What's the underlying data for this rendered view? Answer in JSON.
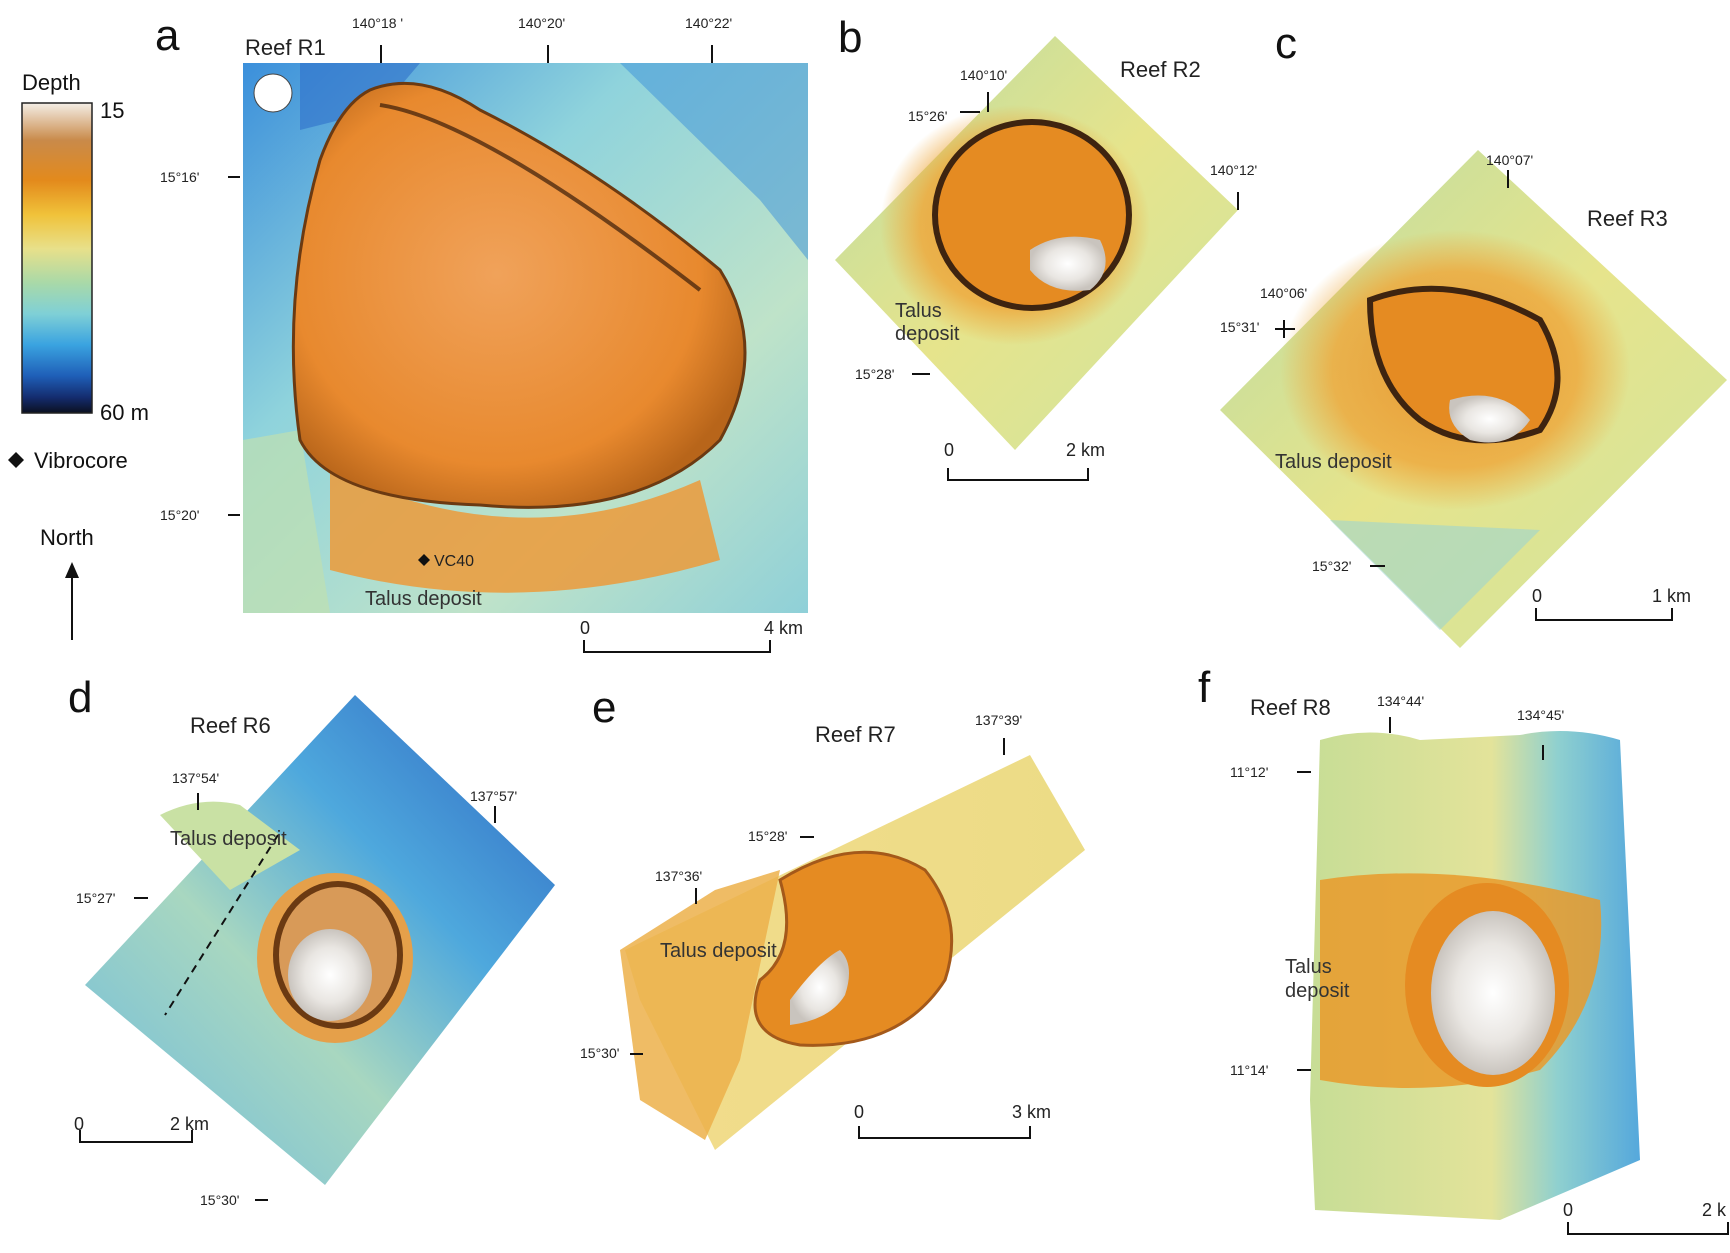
{
  "legend": {
    "title": "Depth",
    "top_value": "15",
    "bottom_value": "60 m",
    "gradient_colors": [
      "#f4eee6",
      "#c98a4a",
      "#e38a1c",
      "#f0c23a",
      "#e8e08a",
      "#a9d9a8",
      "#7fd0d6",
      "#3aa3e0",
      "#1f5fb8",
      "#142c6e",
      "#0b1020"
    ],
    "vibrocore_label": "Vibrocore",
    "north_label": "North"
  },
  "panels": {
    "a": {
      "letter": "a",
      "title": "Reef R1",
      "lon_ticks": [
        "140°18 '",
        "140°20'",
        "140°22'"
      ],
      "lat_ticks": [
        "15°16' ",
        "15°20' "
      ],
      "vibrocore": "VC40",
      "talus": "Talus deposit",
      "scale_left": "0",
      "scale_right": "4 km"
    },
    "b": {
      "letter": "b",
      "title": "Reef R2",
      "coords": [
        "140°10'",
        "15°26'",
        "140°12'",
        "15°28'"
      ],
      "talus_line1": "Talus",
      "talus_line2": "deposit",
      "scale_left": "0",
      "scale_right": "2 km"
    },
    "c": {
      "letter": "c",
      "title": "Reef R3",
      "coords": [
        "140°07'",
        "140°06'",
        "15°31'",
        "15°32'"
      ],
      "talus": "Talus deposit",
      "scale_left": "0",
      "scale_right": "1 km"
    },
    "d": {
      "letter": "d",
      "title": "Reef R6",
      "coords": [
        "137°54'",
        "137°57'",
        "15°27'",
        "15°30'"
      ],
      "talus": "Talus deposit",
      "scale_left": "0",
      "scale_right": "2 km"
    },
    "e": {
      "letter": "e",
      "title": "Reef R7",
      "coords": [
        "137°39'",
        "15°28'",
        "137°36'",
        "15°30'"
      ],
      "talus": "Talus deposit",
      "scale_left": "0",
      "scale_right": "3 km"
    },
    "f": {
      "letter": "f",
      "title": "Reef R8",
      "coords": [
        "134°44'",
        "134°45'",
        "11°12'",
        "11°14'"
      ],
      "talus_line1": "Talus",
      "talus_line2": "deposit",
      "scale_left": "0",
      "scale_right": "2 k"
    }
  }
}
